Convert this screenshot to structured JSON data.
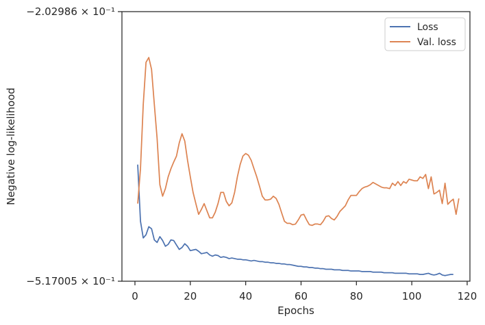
{
  "chart_data": {
    "type": "line",
    "xlabel": "Epochs",
    "ylabel": "Negative log-likelihood",
    "x_ticks": [
      0,
      20,
      40,
      60,
      80,
      100,
      120
    ],
    "xlim": [
      -4.7,
      121
    ],
    "y_scale": "log",
    "ylim_tick_labels": [
      "−2.02986 × 10⁻¹",
      "−5.17005 × 10⁻¹"
    ],
    "legend_position": "top-right",
    "grid": false,
    "series": [
      {
        "name": "Loss",
        "color": "#4c72b0",
        "points": [
          [
            1,
            -0.345
          ],
          [
            2,
            -0.42
          ],
          [
            3,
            -0.445
          ],
          [
            4,
            -0.44
          ],
          [
            5,
            -0.428
          ],
          [
            6,
            -0.431
          ],
          [
            7,
            -0.448
          ],
          [
            8,
            -0.452
          ],
          [
            9,
            -0.443
          ],
          [
            10,
            -0.449
          ],
          [
            11,
            -0.458
          ],
          [
            12,
            -0.455
          ],
          [
            13,
            -0.448
          ],
          [
            14,
            -0.449
          ],
          [
            15,
            -0.456
          ],
          [
            16,
            -0.463
          ],
          [
            17,
            -0.46
          ],
          [
            18,
            -0.454
          ],
          [
            19,
            -0.458
          ],
          [
            20,
            -0.465
          ],
          [
            21,
            -0.464
          ],
          [
            22,
            -0.463
          ],
          [
            23,
            -0.466
          ],
          [
            24,
            -0.47
          ],
          [
            25,
            -0.469
          ],
          [
            26,
            -0.468
          ],
          [
            27,
            -0.472
          ],
          [
            28,
            -0.474
          ],
          [
            29,
            -0.472
          ],
          [
            30,
            -0.473
          ],
          [
            31,
            -0.476
          ],
          [
            32,
            -0.475
          ],
          [
            33,
            -0.476
          ],
          [
            34,
            -0.478
          ],
          [
            35,
            -0.477
          ],
          [
            36,
            -0.478
          ],
          [
            37,
            -0.479
          ],
          [
            38,
            -0.479
          ],
          [
            39,
            -0.48
          ],
          [
            40,
            -0.48
          ],
          [
            41,
            -0.481
          ],
          [
            42,
            -0.482
          ],
          [
            43,
            -0.481
          ],
          [
            44,
            -0.482
          ],
          [
            45,
            -0.483
          ],
          [
            46,
            -0.483
          ],
          [
            47,
            -0.484
          ],
          [
            48,
            -0.484
          ],
          [
            49,
            -0.485
          ],
          [
            50,
            -0.485
          ],
          [
            51,
            -0.486
          ],
          [
            52,
            -0.486
          ],
          [
            53,
            -0.487
          ],
          [
            54,
            -0.487
          ],
          [
            55,
            -0.488
          ],
          [
            56,
            -0.488
          ],
          [
            57,
            -0.489
          ],
          [
            58,
            -0.49
          ],
          [
            59,
            -0.491
          ],
          [
            60,
            -0.491
          ],
          [
            61,
            -0.492
          ],
          [
            62,
            -0.492
          ],
          [
            63,
            -0.493
          ],
          [
            64,
            -0.493
          ],
          [
            65,
            -0.494
          ],
          [
            66,
            -0.494
          ],
          [
            67,
            -0.495
          ],
          [
            68,
            -0.495
          ],
          [
            69,
            -0.496
          ],
          [
            70,
            -0.496
          ],
          [
            71,
            -0.496
          ],
          [
            72,
            -0.497
          ],
          [
            73,
            -0.497
          ],
          [
            74,
            -0.497
          ],
          [
            75,
            -0.498
          ],
          [
            76,
            -0.498
          ],
          [
            77,
            -0.498
          ],
          [
            78,
            -0.499
          ],
          [
            79,
            -0.499
          ],
          [
            80,
            -0.499
          ],
          [
            81,
            -0.499
          ],
          [
            82,
            -0.5
          ],
          [
            83,
            -0.5
          ],
          [
            84,
            -0.5
          ],
          [
            85,
            -0.5
          ],
          [
            86,
            -0.501
          ],
          [
            87,
            -0.501
          ],
          [
            88,
            -0.501
          ],
          [
            89,
            -0.501
          ],
          [
            90,
            -0.502
          ],
          [
            91,
            -0.502
          ],
          [
            92,
            -0.502
          ],
          [
            93,
            -0.502
          ],
          [
            94,
            -0.503
          ],
          [
            95,
            -0.503
          ],
          [
            96,
            -0.503
          ],
          [
            97,
            -0.503
          ],
          [
            98,
            -0.503
          ],
          [
            99,
            -0.504
          ],
          [
            100,
            -0.504
          ],
          [
            101,
            -0.504
          ],
          [
            102,
            -0.504
          ],
          [
            103,
            -0.505
          ],
          [
            104,
            -0.505
          ],
          [
            105,
            -0.504
          ],
          [
            106,
            -0.503
          ],
          [
            107,
            -0.505
          ],
          [
            108,
            -0.506
          ],
          [
            109,
            -0.505
          ],
          [
            110,
            -0.503
          ],
          [
            111,
            -0.506
          ],
          [
            112,
            -0.507
          ],
          [
            113,
            -0.506
          ],
          [
            114,
            -0.505
          ],
          [
            115,
            -0.505
          ]
        ]
      },
      {
        "name": "Val. loss",
        "color": "#dd8452",
        "points": [
          [
            1,
            -0.395
          ],
          [
            2,
            -0.35
          ],
          [
            3,
            -0.28
          ],
          [
            4,
            -0.242
          ],
          [
            5,
            -0.238
          ],
          [
            6,
            -0.248
          ],
          [
            7,
            -0.28
          ],
          [
            8,
            -0.315
          ],
          [
            9,
            -0.37
          ],
          [
            10,
            -0.385
          ],
          [
            11,
            -0.375
          ],
          [
            12,
            -0.36
          ],
          [
            13,
            -0.35
          ],
          [
            14,
            -0.342
          ],
          [
            15,
            -0.335
          ],
          [
            16,
            -0.32
          ],
          [
            17,
            -0.31
          ],
          [
            18,
            -0.318
          ],
          [
            19,
            -0.34
          ],
          [
            20,
            -0.36
          ],
          [
            21,
            -0.38
          ],
          [
            22,
            -0.395
          ],
          [
            23,
            -0.41
          ],
          [
            24,
            -0.403
          ],
          [
            25,
            -0.395
          ],
          [
            26,
            -0.405
          ],
          [
            27,
            -0.415
          ],
          [
            28,
            -0.415
          ],
          [
            29,
            -0.407
          ],
          [
            30,
            -0.395
          ],
          [
            31,
            -0.38
          ],
          [
            32,
            -0.38
          ],
          [
            33,
            -0.392
          ],
          [
            34,
            -0.398
          ],
          [
            35,
            -0.394
          ],
          [
            36,
            -0.38
          ],
          [
            37,
            -0.36
          ],
          [
            38,
            -0.345
          ],
          [
            39,
            -0.335
          ],
          [
            40,
            -0.332
          ],
          [
            41,
            -0.334
          ],
          [
            42,
            -0.34
          ],
          [
            43,
            -0.35
          ],
          [
            44,
            -0.36
          ],
          [
            45,
            -0.372
          ],
          [
            46,
            -0.385
          ],
          [
            47,
            -0.39
          ],
          [
            48,
            -0.39
          ],
          [
            49,
            -0.389
          ],
          [
            50,
            -0.385
          ],
          [
            51,
            -0.388
          ],
          [
            52,
            -0.396
          ],
          [
            53,
            -0.408
          ],
          [
            54,
            -0.42
          ],
          [
            55,
            -0.423
          ],
          [
            56,
            -0.423
          ],
          [
            57,
            -0.425
          ],
          [
            58,
            -0.424
          ],
          [
            59,
            -0.418
          ],
          [
            60,
            -0.411
          ],
          [
            61,
            -0.41
          ],
          [
            62,
            -0.418
          ],
          [
            63,
            -0.425
          ],
          [
            64,
            -0.426
          ],
          [
            65,
            -0.424
          ],
          [
            66,
            -0.424
          ],
          [
            67,
            -0.425
          ],
          [
            68,
            -0.42
          ],
          [
            69,
            -0.413
          ],
          [
            70,
            -0.412
          ],
          [
            71,
            -0.416
          ],
          [
            72,
            -0.418
          ],
          [
            73,
            -0.413
          ],
          [
            74,
            -0.406
          ],
          [
            75,
            -0.402
          ],
          [
            76,
            -0.398
          ],
          [
            77,
            -0.39
          ],
          [
            78,
            -0.384
          ],
          [
            79,
            -0.384
          ],
          [
            80,
            -0.384
          ],
          [
            81,
            -0.379
          ],
          [
            82,
            -0.375
          ],
          [
            83,
            -0.373
          ],
          [
            84,
            -0.372
          ],
          [
            85,
            -0.37
          ],
          [
            86,
            -0.367
          ],
          [
            87,
            -0.369
          ],
          [
            88,
            -0.371
          ],
          [
            89,
            -0.373
          ],
          [
            90,
            -0.374
          ],
          [
            91,
            -0.374
          ],
          [
            92,
            -0.375
          ],
          [
            93,
            -0.368
          ],
          [
            94,
            -0.371
          ],
          [
            95,
            -0.366
          ],
          [
            96,
            -0.371
          ],
          [
            97,
            -0.366
          ],
          [
            98,
            -0.368
          ],
          [
            99,
            -0.363
          ],
          [
            100,
            -0.364
          ],
          [
            101,
            -0.365
          ],
          [
            102,
            -0.365
          ],
          [
            103,
            -0.36
          ],
          [
            104,
            -0.362
          ],
          [
            105,
            -0.357
          ],
          [
            106,
            -0.375
          ],
          [
            107,
            -0.36
          ],
          [
            108,
            -0.382
          ],
          [
            109,
            -0.38
          ],
          [
            110,
            -0.377
          ],
          [
            111,
            -0.395
          ],
          [
            112,
            -0.368
          ],
          [
            113,
            -0.396
          ],
          [
            114,
            -0.392
          ],
          [
            115,
            -0.389
          ],
          [
            116,
            -0.41
          ],
          [
            117,
            -0.388
          ]
        ]
      }
    ]
  }
}
